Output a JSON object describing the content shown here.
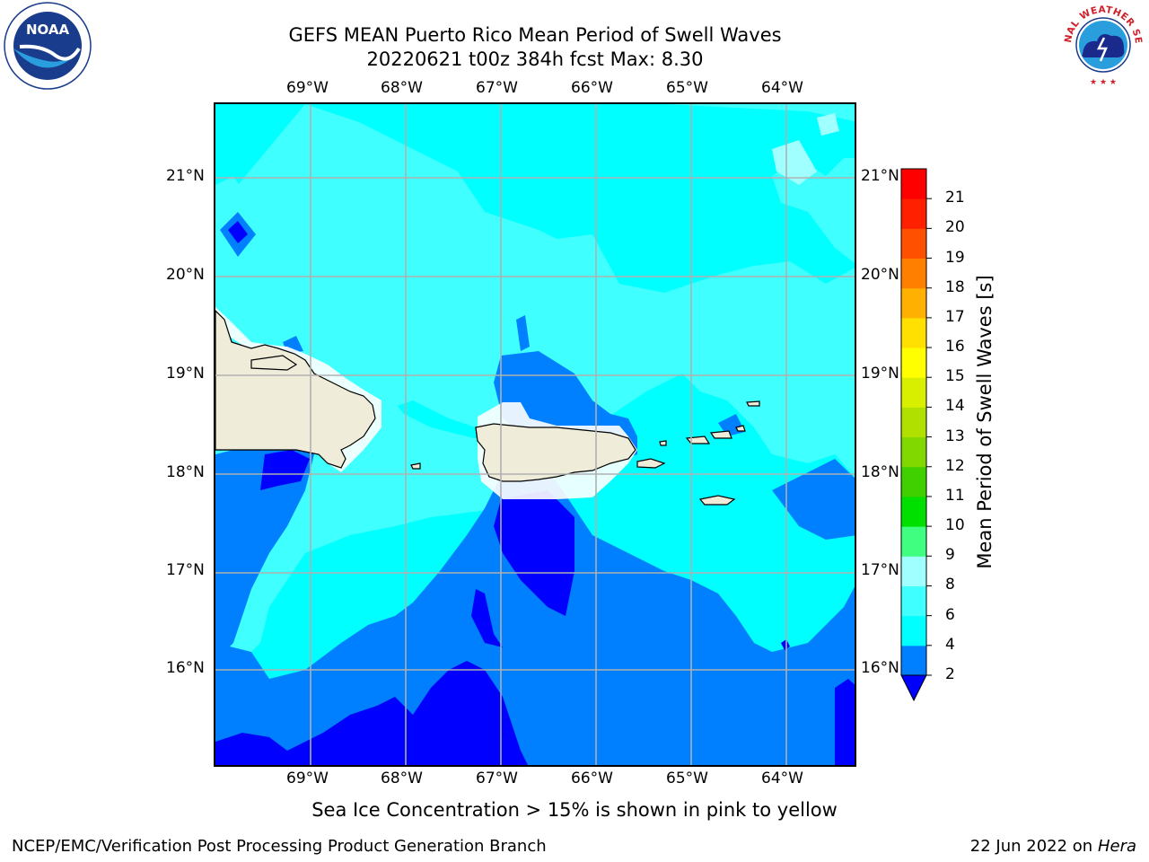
{
  "title": {
    "line1": "GEFS MEAN Puerto Rico Mean Period of Swell Waves",
    "line2": "20220621 t00z 384h fcst   Max: 8.30"
  },
  "logos": {
    "left": {
      "icon": "noaa-logo-icon",
      "text": "NOAA"
    },
    "right": {
      "icon": "nws-logo-icon",
      "text": "NATIONAL WEATHER SERVICE"
    }
  },
  "map": {
    "lon_labels": [
      "69°W",
      "68°W",
      "67°W",
      "66°W",
      "65°W",
      "64°W"
    ],
    "lat_labels": [
      "21°N",
      "20°N",
      "19°N",
      "18°N",
      "17°N",
      "16°N"
    ],
    "colors": {
      "band_2_4": "#0080ff",
      "band_4_6": "#00ffff",
      "band_6_8": "#40ffff",
      "band_below_2": "#0000ff",
      "land": "#efedda",
      "grid": "#b0b0b0"
    }
  },
  "colorbar": {
    "title": "Mean Period of Swell Waves [s]",
    "levels": [
      "2",
      "4",
      "6",
      "8",
      "9",
      "10",
      "11",
      "12",
      "13",
      "14",
      "15",
      "16",
      "17",
      "18",
      "19",
      "20",
      "21"
    ],
    "colors": [
      "#0080ff",
      "#00ffff",
      "#40ffff",
      "#a0ffff",
      "#40ff80",
      "#00e000",
      "#40d000",
      "#80d800",
      "#b0e000",
      "#d8f000",
      "#ffff00",
      "#ffe000",
      "#ffb000",
      "#ff8000",
      "#ff5000",
      "#ff2000",
      "#ff0000"
    ],
    "extend_color": "#0000ff"
  },
  "note": "Sea Ice Concentration > 15% is shown in pink to yellow",
  "footer": {
    "left": "NCEP/EMC/Verification Post Processing Product Generation Branch",
    "date": "22 Jun 2022 on",
    "machine": "Hera"
  }
}
